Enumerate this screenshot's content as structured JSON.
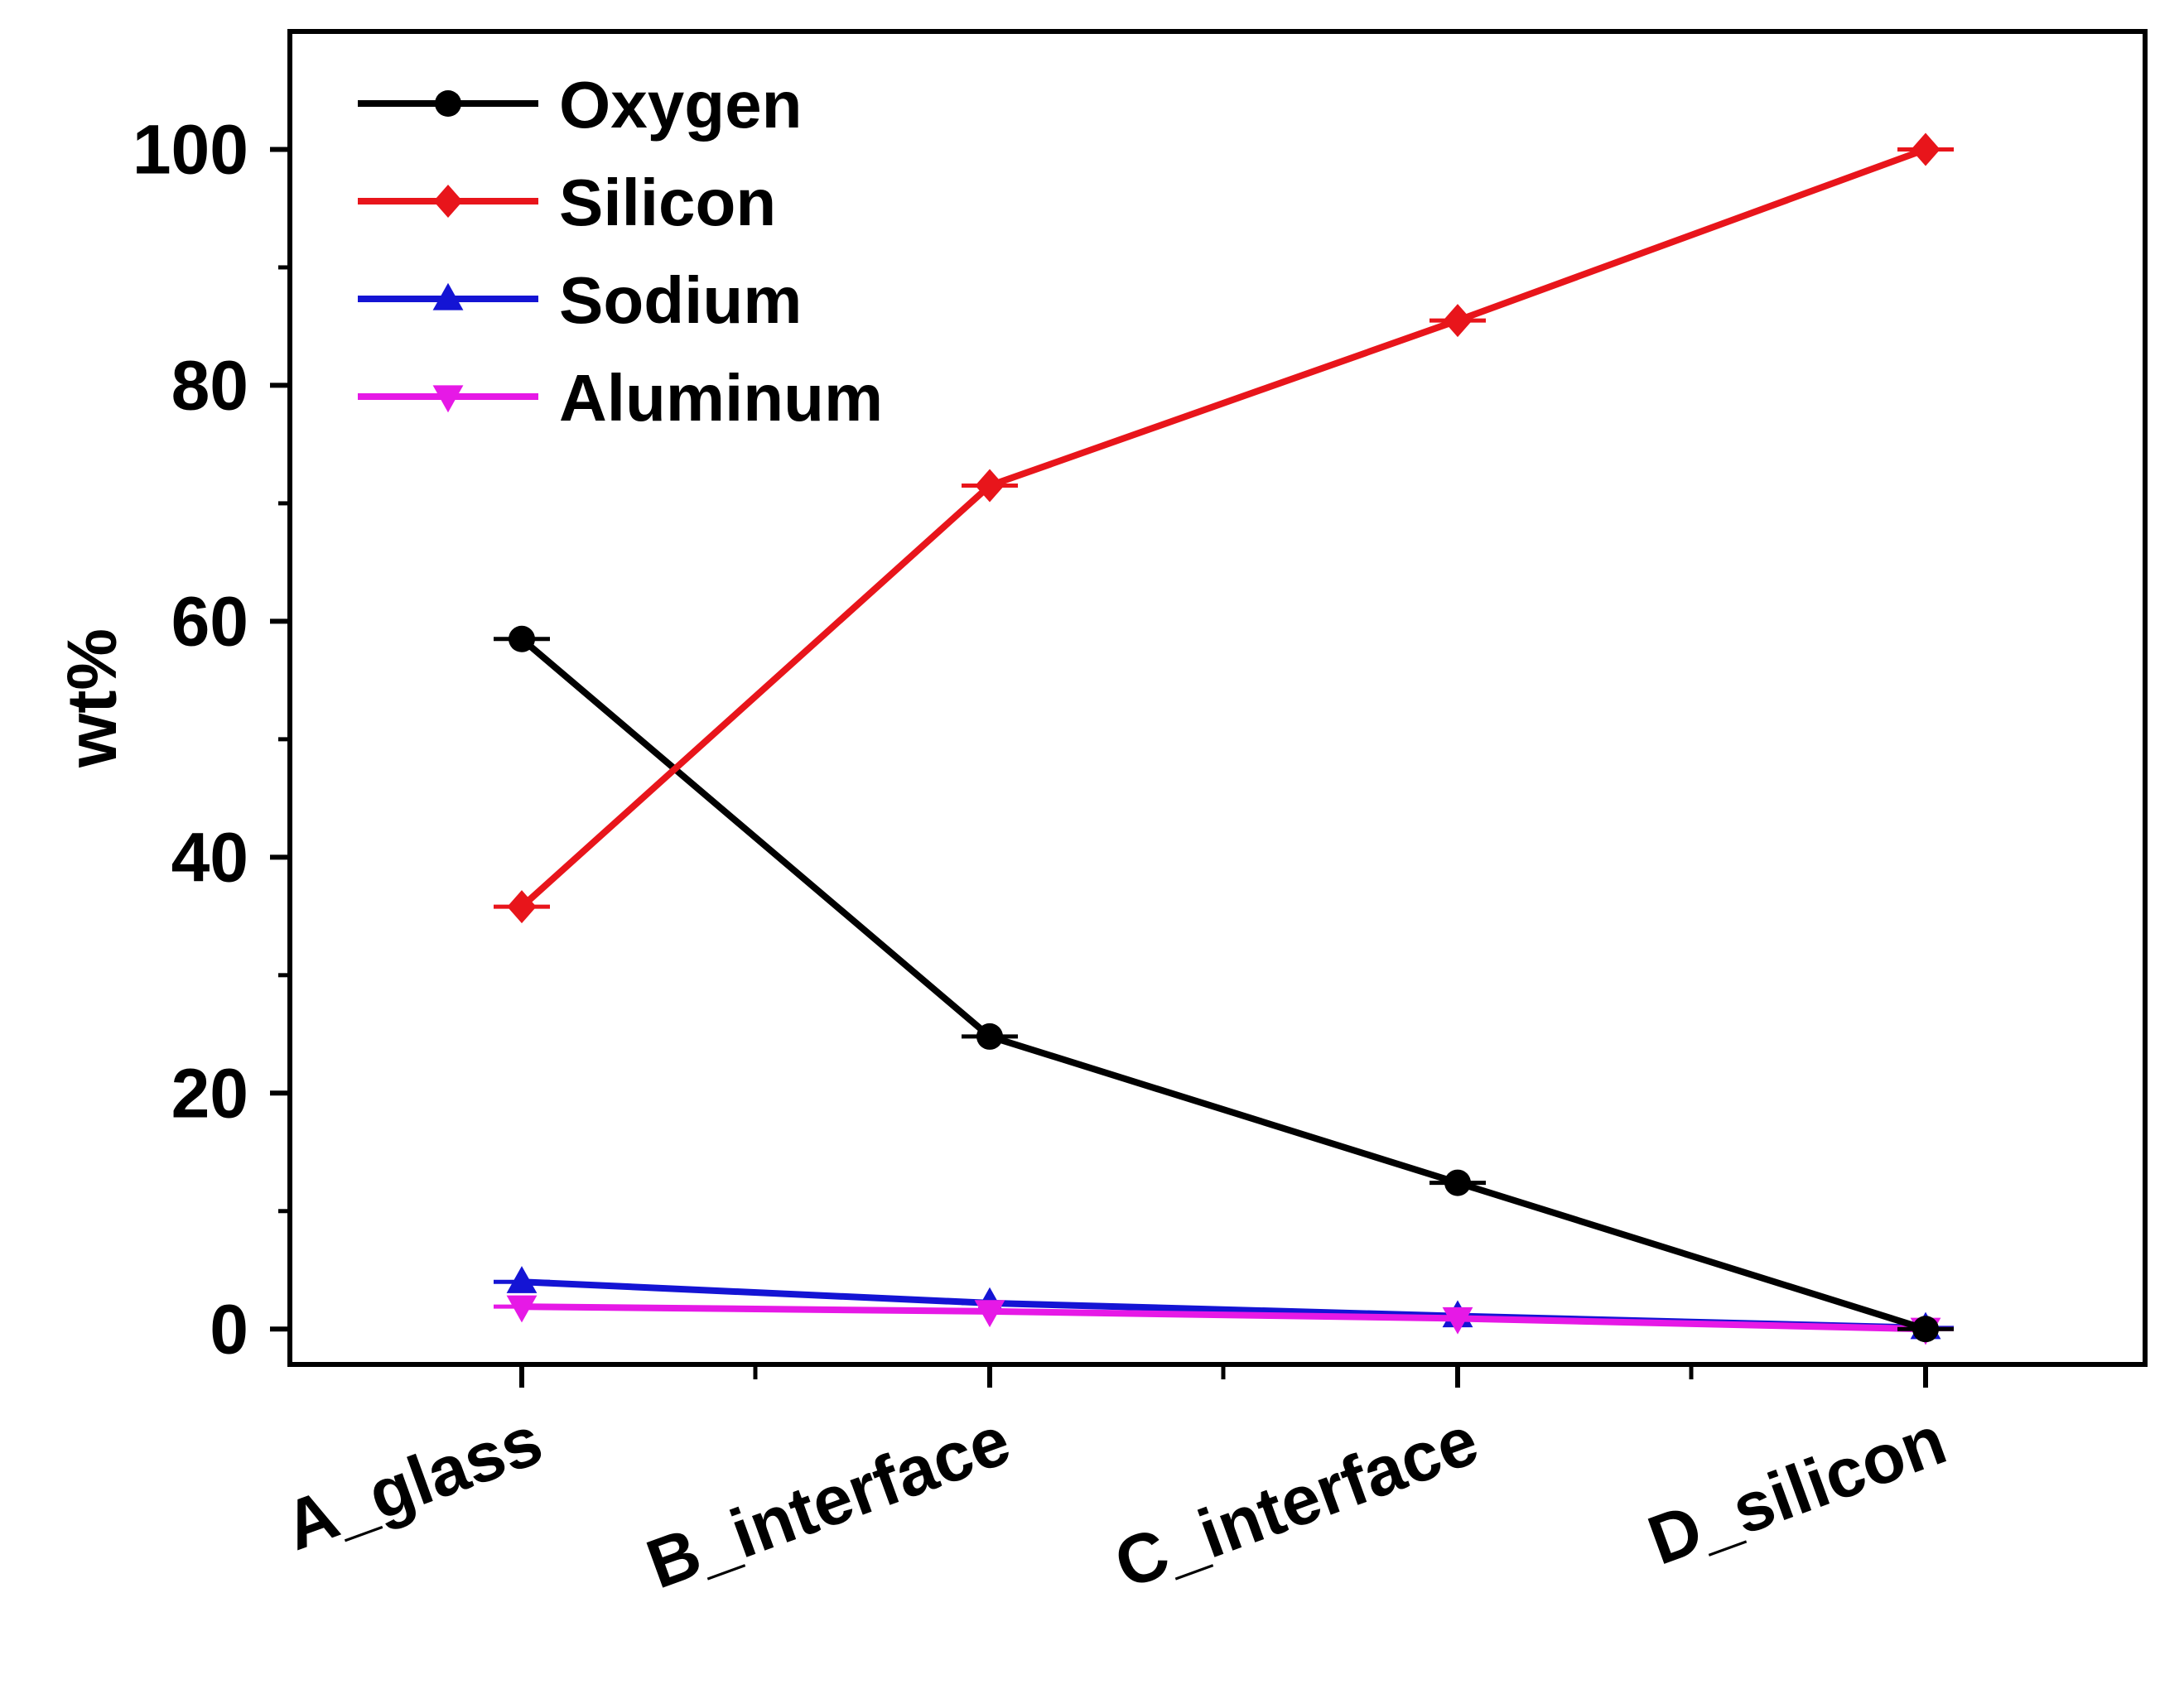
{
  "chart_data": {
    "type": "line",
    "title": "",
    "xlabel": "",
    "ylabel": "wt%",
    "ylim": [
      -3,
      110
    ],
    "yticks": [
      0,
      20,
      40,
      60,
      80,
      100
    ],
    "yminor_step": 10,
    "categories": [
      "A_glass",
      "B_interface",
      "C_interface",
      "D_silicon"
    ],
    "series": [
      {
        "name": "Oxygen",
        "color": "#000000",
        "marker": "circle",
        "values": [
          58.5,
          24.8,
          12.4,
          0.0
        ]
      },
      {
        "name": "Silicon",
        "color": "#e8151b",
        "marker": "diamond",
        "values": [
          35.8,
          71.5,
          85.5,
          100.0
        ]
      },
      {
        "name": "Sodium",
        "color": "#1414d4",
        "marker": "triangle-up",
        "values": [
          4.0,
          2.2,
          1.1,
          0.1
        ]
      },
      {
        "name": "Aluminum",
        "color": "#e619e6",
        "marker": "triangle-down",
        "values": [
          1.9,
          1.5,
          0.9,
          0.0
        ]
      }
    ],
    "legend": "top-left",
    "grid": false
  }
}
